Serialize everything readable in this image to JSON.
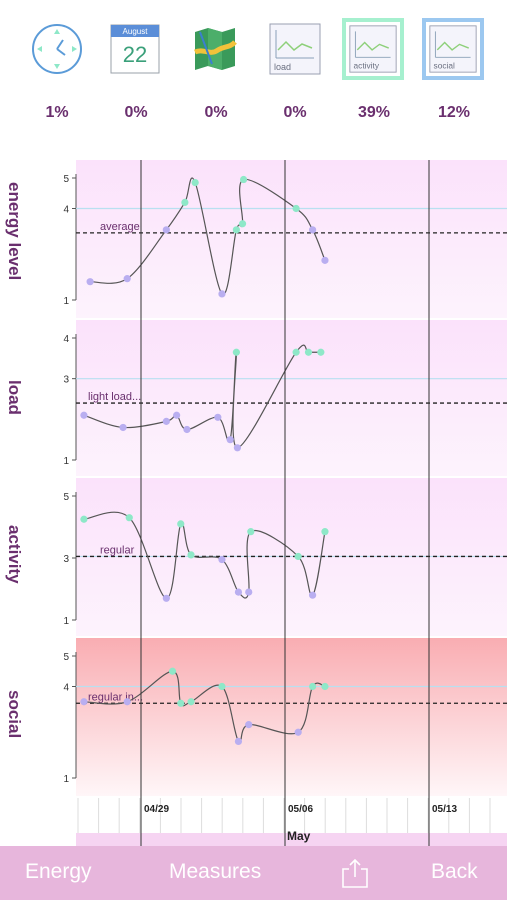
{
  "toolbar": {
    "icons": [
      {
        "name": "clock-icon",
        "percent": "1%"
      },
      {
        "name": "calendar-icon",
        "month": "August",
        "day": "22",
        "percent": "0%"
      },
      {
        "name": "map-icon",
        "percent": "0%"
      },
      {
        "name": "load-chart-icon",
        "label": "load",
        "percent": "0%"
      },
      {
        "name": "activity-chart-icon",
        "label": "activity",
        "percent": "39%",
        "selected_color": "#a6f0cf"
      },
      {
        "name": "social-chart-icon",
        "label": "social",
        "percent": "12%",
        "selected_color": "#9cc8f0"
      }
    ]
  },
  "rows": [
    {
      "label": "energy level",
      "ticks": [
        "1",
        "4",
        "5"
      ],
      "ymin": 1,
      "ymax": 5,
      "baseline_label": "average",
      "baseline": 3.2,
      "reference": 4,
      "points": [
        [
          0.2,
          1.6,
          "p"
        ],
        [
          2.0,
          1.7,
          "p"
        ],
        [
          3.9,
          3.3,
          "p"
        ],
        [
          4.8,
          4.2,
          "g"
        ],
        [
          5.3,
          4.85,
          "g"
        ],
        [
          6.6,
          1.2,
          "p"
        ],
        [
          7.3,
          3.3,
          "g"
        ],
        [
          7.6,
          3.5,
          "g"
        ],
        [
          7.65,
          4.95,
          "g"
        ],
        [
          10.2,
          4.0,
          "g"
        ],
        [
          11.0,
          3.3,
          "p"
        ],
        [
          11.6,
          2.3,
          "p"
        ]
      ]
    },
    {
      "label": "load",
      "ticks": [
        "1",
        "3",
        "4"
      ],
      "ymin": 1,
      "ymax": 4,
      "baseline_label": "light load...",
      "baseline": 2.4,
      "reference": 3,
      "points": [
        [
          -0.1,
          2.1,
          "p"
        ],
        [
          1.8,
          1.8,
          "p"
        ],
        [
          3.9,
          1.95,
          "p"
        ],
        [
          4.4,
          2.1,
          "p"
        ],
        [
          4.9,
          1.75,
          "p"
        ],
        [
          6.4,
          2.05,
          "p"
        ],
        [
          7.0,
          1.5,
          "p"
        ],
        [
          7.3,
          3.65,
          "g"
        ],
        [
          7.35,
          1.3,
          "p"
        ],
        [
          10.2,
          3.65,
          "g"
        ],
        [
          10.8,
          3.65,
          "g"
        ],
        [
          11.4,
          3.65,
          "g"
        ]
      ]
    },
    {
      "label": "activity",
      "ticks": [
        "1",
        "3",
        "5"
      ],
      "ymin": 1,
      "ymax": 5,
      "baseline_label": "regular",
      "baseline": 3.05,
      "reference": 3.05,
      "points": [
        [
          -0.1,
          4.25,
          "g"
        ],
        [
          2.1,
          4.3,
          "g"
        ],
        [
          3.9,
          1.7,
          "p"
        ],
        [
          4.6,
          4.1,
          "g"
        ],
        [
          5.1,
          3.1,
          "g"
        ],
        [
          6.6,
          2.95,
          "p"
        ],
        [
          7.4,
          1.9,
          "p"
        ],
        [
          7.9,
          1.9,
          "p"
        ],
        [
          8.0,
          3.85,
          "g"
        ],
        [
          10.3,
          3.05,
          "g"
        ],
        [
          11.0,
          1.8,
          "p"
        ],
        [
          11.6,
          3.85,
          "g"
        ]
      ]
    },
    {
      "label": "social",
      "ticks": [
        "1",
        "4",
        "5"
      ],
      "ymin": 1,
      "ymax": 5,
      "baseline_label": "regular in...",
      "baseline": 3.45,
      "reference": 4,
      "points": [
        [
          -0.1,
          3.5,
          "p"
        ],
        [
          2.0,
          3.5,
          "p"
        ],
        [
          4.2,
          4.5,
          "g"
        ],
        [
          4.6,
          3.45,
          "g"
        ],
        [
          5.1,
          3.5,
          "g"
        ],
        [
          6.6,
          4.0,
          "g"
        ],
        [
          7.4,
          2.2,
          "p"
        ],
        [
          7.9,
          2.75,
          "p"
        ],
        [
          10.3,
          2.5,
          "p"
        ],
        [
          11.0,
          4.0,
          "g"
        ],
        [
          11.6,
          4.0,
          "g"
        ]
      ]
    }
  ],
  "xaxis": {
    "dates": [
      "04/29",
      "05/06",
      "05/13"
    ],
    "month": "May"
  },
  "colors": {
    "purple_point": "#b9aef0",
    "green_point": "#8ee8c8",
    "row_bg": "#fbe6fb",
    "social_bg": "#f9adb2",
    "reference_line": "#b8e0f0"
  },
  "bottombar": {
    "energy": "Energy",
    "measures": "Measures",
    "share": "share-icon",
    "back": "Back"
  }
}
